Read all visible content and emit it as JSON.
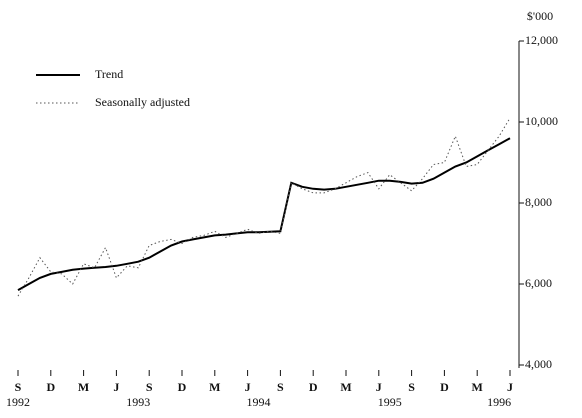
{
  "chart_data": {
    "type": "line",
    "y_unit": "$'000",
    "categories": [
      "S",
      null,
      null,
      "D",
      null,
      null,
      "M",
      null,
      null,
      "J",
      null,
      null,
      "S",
      null,
      null,
      "D",
      null,
      null,
      "M",
      null,
      null,
      "J",
      null,
      null,
      "S",
      null,
      null,
      "D",
      null,
      null,
      "M",
      null,
      null,
      "J",
      null,
      null,
      "S",
      null,
      null,
      "D",
      null,
      null,
      "M",
      null,
      null,
      "J"
    ],
    "year_labels": [
      {
        "text": "1992",
        "category": 0
      },
      {
        "text": "1993",
        "category": 11
      },
      {
        "text": "1994",
        "category": 22
      },
      {
        "text": "1995",
        "category": 34
      },
      {
        "text": "1996",
        "category": 44
      }
    ],
    "series": [
      {
        "name": "Trend",
        "color": "#000000",
        "style": "solid",
        "values": [
          5850,
          6000,
          6150,
          6250,
          6300,
          6350,
          6380,
          6400,
          6420,
          6450,
          6500,
          6550,
          6650,
          6800,
          6950,
          7050,
          7100,
          7150,
          7200,
          7220,
          7250,
          7280,
          7280,
          7290,
          7300,
          8500,
          8400,
          8350,
          8330,
          8350,
          8400,
          8450,
          8500,
          8550,
          8550,
          8520,
          8480,
          8500,
          8600,
          8750,
          8900,
          9000,
          9150,
          9300,
          9450,
          9600
        ]
      },
      {
        "name": "Seasonally adjusted",
        "color": "#555555",
        "style": "dotted",
        "values": [
          5700,
          6150,
          6650,
          6300,
          6250,
          6000,
          6500,
          6400,
          6900,
          6150,
          6450,
          6400,
          6950,
          7050,
          7100,
          7000,
          7150,
          7200,
          7300,
          7150,
          7250,
          7350,
          7250,
          7300,
          7250,
          8500,
          8350,
          8250,
          8250,
          8350,
          8500,
          8650,
          8750,
          8350,
          8700,
          8500,
          8300,
          8600,
          8950,
          9000,
          9650,
          8900,
          8950,
          9300,
          9650,
          10100
        ]
      }
    ],
    "ylim": [
      4000,
      12000
    ],
    "yticks": [
      {
        "value": 4000,
        "label": "4,000"
      },
      {
        "value": 6000,
        "label": "6,000"
      },
      {
        "value": 8000,
        "label": "8,000"
      },
      {
        "value": 10000,
        "label": "10,000"
      },
      {
        "value": 12000,
        "label": "12,000"
      }
    ],
    "y_axis_side": "right",
    "legend": "top-left"
  }
}
